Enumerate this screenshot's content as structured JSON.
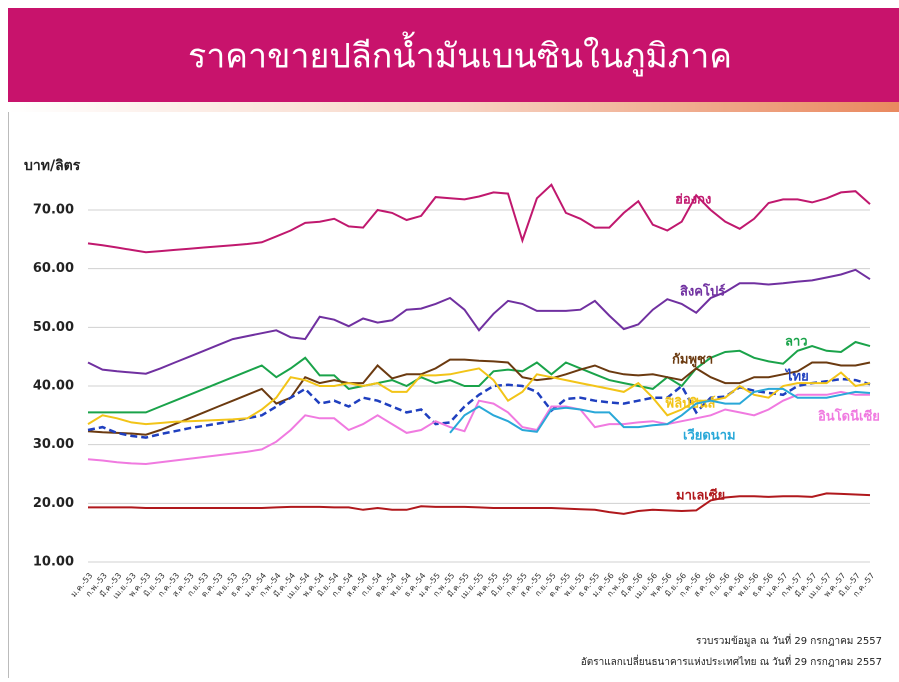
{
  "chart_data": {
    "type": "line",
    "title": "ราคาขายปลีกน้ำมันเบนซินในภูมิภาค",
    "y_label": "บาท/ลิตร",
    "notes": [
      "รวบรวมข้อมูล ณ วันที่ 29 กรกฎาคม 2557",
      "อัตราแลกเปลี่ยนธนาคารแห่งประเทศไทย  ณ วันที่ 29 กรกฎาคม 2557"
    ],
    "categories": [
      "ม.ค.-53",
      "ก.พ.-53",
      "มี.ค.-53",
      "เม.ย.-53",
      "พ.ค.-53",
      "มิ.ย.-53",
      "ก.ค.-53",
      "ส.ค.-53",
      "ก.ย.-53",
      "ต.ค.-53",
      "พ.ย.-53",
      "ธ.ค.-53",
      "ม.ค.-54",
      "ก.พ.-54",
      "มี.ค.-54",
      "เม.ย.-54",
      "พ.ค.-54",
      "มิ.ย.-54",
      "ก.ค.-54",
      "ส.ค.-54",
      "ก.ย.-54",
      "ต.ค.-54",
      "พ.ย.-54",
      "ธ.ค.-54",
      "ม.ค.-55",
      "ก.พ.-55",
      "มี.ค.-55",
      "เม.ย.-55",
      "พ.ค.-55",
      "มิ.ย.-55",
      "ก.ค.-55",
      "ส.ค.-55",
      "ก.ย.-55",
      "ต.ค.-55",
      "พ.ย.-55",
      "ธ.ค.-55",
      "ม.ค.-56",
      "ก.พ.-56",
      "มี.ค.-56",
      "เม.ย.-56",
      "พ.ค.-56",
      "มิ.ย.-56",
      "ก.ค.-56",
      "ส.ค.-56",
      "ก.ย.-56",
      "ต.ค.-56",
      "พ.ย.-56",
      "ธ.ค.-56",
      "ม.ค.-57",
      "ก.พ.-57",
      "มี.ค.-57",
      "เม.ย.-57",
      "พ.ค.-57",
      "มิ.ย.-57",
      "ก.ค.-57"
    ],
    "series": [
      {
        "name": "ฮ่องกง",
        "color": "#c0186e",
        "values": [
          64.3,
          64,
          63.6,
          63.2,
          62.8,
          63,
          63.2,
          63.4,
          63.6,
          63.8,
          64,
          64.2,
          64.5,
          65.5,
          66.5,
          67.8,
          68,
          68.5,
          67.2,
          67,
          70,
          69.5,
          68.3,
          69,
          72.2,
          72,
          71.8,
          72.3,
          73,
          72.8,
          64.8,
          72,
          74.3,
          69.5,
          68.5,
          67,
          67,
          69.5,
          71.5,
          67.5,
          66.5,
          68,
          72.5,
          70,
          68,
          66.8,
          68.5,
          71.2,
          71.8,
          71.8,
          71.3,
          72,
          73,
          73.2,
          71
        ]
      },
      {
        "name": "สิงคโปร์",
        "color": "#7030a0",
        "values": [
          44,
          42.8,
          42.5,
          42.3,
          42.1,
          43,
          44,
          45,
          46,
          47,
          48,
          48.5,
          49,
          49.5,
          48.3,
          48,
          51.8,
          51.3,
          50.2,
          51.5,
          50.8,
          51.2,
          53,
          53.2,
          54,
          55,
          53,
          49.5,
          52.3,
          54.5,
          54,
          52.8,
          52.8,
          52.8,
          53,
          54.5,
          52,
          49.7,
          50.5,
          53,
          54.8,
          54,
          52.5,
          55,
          56,
          57.5,
          57.5,
          57.3,
          57.5,
          57.8,
          58,
          58.5,
          59,
          59.8,
          58.2
        ]
      },
      {
        "name": "ลาว",
        "color": "#1aa34a",
        "values": [
          35.5,
          35.5,
          35.5,
          35.5,
          35.5,
          36.5,
          37.5,
          38.5,
          39.5,
          40.5,
          41.5,
          42.5,
          43.5,
          41.5,
          43,
          44.8,
          41.8,
          41.8,
          39.5,
          40,
          40.5,
          41,
          40,
          41.5,
          40.5,
          41,
          40,
          40,
          42.5,
          42.8,
          42.5,
          44,
          42,
          44,
          43,
          42,
          41,
          40.5,
          40,
          39.5,
          41.5,
          40,
          43,
          44.8,
          45.8,
          46,
          44.8,
          44.2,
          43.8,
          46,
          46.8,
          46,
          45.8,
          47.5,
          46.8
        ]
      },
      {
        "name": "กัมพูชา",
        "color": "#6b3a10",
        "values": [
          32.3,
          32.1,
          32,
          31.9,
          31.7,
          32.5,
          33.5,
          34.5,
          35.5,
          36.5,
          37.5,
          38.5,
          39.5,
          37,
          38,
          41.5,
          40.5,
          41,
          40.5,
          40.5,
          43.5,
          41.3,
          42,
          42,
          43,
          44.5,
          44.5,
          44.3,
          44.2,
          44,
          41.5,
          41,
          41.3,
          42,
          42.8,
          43.5,
          42.5,
          42,
          41.8,
          42,
          41.5,
          41,
          43,
          41.5,
          40.5,
          40.5,
          41.5,
          41.5,
          42,
          42.5,
          44,
          44,
          43.5,
          43.5,
          44
        ]
      },
      {
        "name": "ไทย",
        "color": "#1f3fbf",
        "dashed": true,
        "values": [
          32.5,
          33,
          32,
          31.5,
          31.2,
          31.8,
          32.3,
          32.8,
          33.2,
          33.6,
          34,
          34.5,
          35,
          36.5,
          38,
          39.5,
          37,
          37.5,
          36.5,
          38,
          37.5,
          36.5,
          35.5,
          36,
          33.5,
          33.8,
          36.5,
          38.5,
          40,
          40.2,
          40,
          39,
          35.8,
          37.8,
          38,
          37.5,
          37.2,
          37,
          37.5,
          38,
          38,
          40,
          35.5,
          38,
          38.2,
          39.8,
          39.2,
          38.8,
          38.5,
          40,
          40.5,
          40.8,
          41.2,
          41,
          40.3
        ]
      },
      {
        "name": "ฟิลิปปินส์",
        "color": "#f2c418",
        "values": [
          33.5,
          35,
          34.5,
          33.8,
          33.5,
          33.7,
          33.9,
          34,
          34.1,
          34.2,
          34.3,
          34.5,
          36,
          38,
          41.5,
          41,
          40,
          40,
          40.5,
          40,
          40.5,
          39,
          39,
          41.8,
          41.8,
          42,
          42.5,
          43,
          41,
          37.5,
          39,
          42,
          41.5,
          41,
          40.5,
          40,
          39.5,
          39,
          40.5,
          38,
          35,
          36,
          37.5,
          37.5,
          38,
          40,
          38.5,
          38,
          40,
          40.5,
          40.5,
          40.5,
          42.3,
          40,
          40.5
        ]
      },
      {
        "name": "อินโดนีเซีย",
        "color": "#f07ae0",
        "values": [
          27.5,
          27.3,
          27,
          26.8,
          26.7,
          27,
          27.3,
          27.6,
          27.9,
          28.2,
          28.5,
          28.8,
          29.2,
          30.5,
          32.5,
          35,
          34.5,
          34.5,
          32.5,
          33.5,
          35,
          33.5,
          32,
          32.5,
          34,
          33,
          32.3,
          37.5,
          37,
          35.5,
          33,
          32.5,
          36.5,
          36.5,
          36,
          33,
          33.5,
          33.5,
          33.8,
          34,
          33.5,
          34,
          34.5,
          35,
          36,
          35.5,
          35,
          36,
          37.5,
          38.5,
          38.5,
          38.5,
          39,
          38.5,
          38.5
        ]
      },
      {
        "name": "เวียดนาม",
        "color": "#29a8d8",
        "values": [
          null,
          null,
          null,
          null,
          null,
          null,
          null,
          null,
          null,
          null,
          null,
          null,
          null,
          null,
          null,
          null,
          null,
          null,
          null,
          null,
          null,
          null,
          null,
          null,
          null,
          32,
          35,
          36.5,
          35,
          34,
          32.5,
          32.2,
          36,
          36.3,
          36,
          35.5,
          35.5,
          33,
          33,
          33.3,
          33.5,
          35,
          37,
          37.5,
          37,
          37,
          39,
          39.5,
          39.5,
          38,
          38,
          38,
          38.5,
          39,
          38.8
        ]
      },
      {
        "name": "มาเลเซีย",
        "color": "#b0181c",
        "values": [
          19.3,
          19.3,
          19.3,
          19.3,
          19.2,
          19.2,
          19.2,
          19.2,
          19.2,
          19.2,
          19.2,
          19.2,
          19.2,
          19.3,
          19.4,
          19.4,
          19.4,
          19.3,
          19.3,
          18.9,
          19.2,
          18.9,
          18.9,
          19.5,
          19.4,
          19.4,
          19.4,
          19.3,
          19.2,
          19.2,
          19.2,
          19.2,
          19.2,
          19.1,
          19,
          18.9,
          18.5,
          18.2,
          18.7,
          18.9,
          18.8,
          18.7,
          18.8,
          20.5,
          21,
          21.2,
          21.2,
          21.1,
          21.2,
          21.2,
          21.1,
          21.7,
          21.6,
          21.5,
          21.4
        ]
      }
    ],
    "ylim": [
      10,
      70
    ],
    "yticks": [
      {
        "value": 10,
        "label": "10.00"
      },
      {
        "value": 20,
        "label": "20.00"
      },
      {
        "value": 30,
        "label": "30.00"
      },
      {
        "value": 40,
        "label": "40.00"
      },
      {
        "value": 50,
        "label": "50.00"
      },
      {
        "value": 60,
        "label": "60.00"
      },
      {
        "value": 70,
        "label": "70.00"
      }
    ],
    "grid": true
  }
}
